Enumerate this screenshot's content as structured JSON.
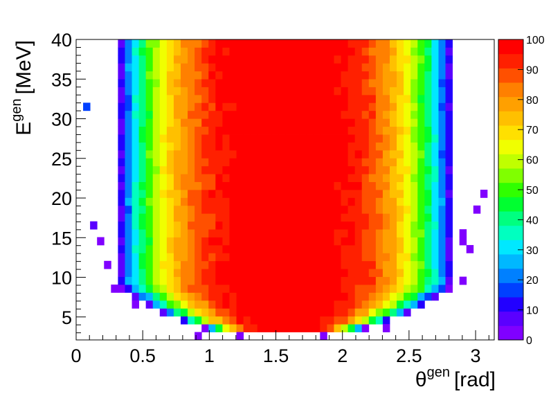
{
  "chart_data": {
    "type": "heatmap",
    "title": "",
    "xlabel": "θ",
    "xlabel_sup": "gen",
    "xlabel_unit": "[rad]",
    "ylabel": "E",
    "ylabel_sup": "gen",
    "ylabel_unit": "[MeV]",
    "xlim": [
      0,
      3.14
    ],
    "ylim": [
      2.1,
      40
    ],
    "x_ticks": [
      "0",
      "0.5",
      "1",
      "1.5",
      "2",
      "2.5",
      "3"
    ],
    "y_ticks": [
      "5",
      "10",
      "15",
      "20",
      "25",
      "30",
      "35",
      "40"
    ],
    "z_range": [
      0,
      100
    ],
    "colorbar_ticks": [
      "0",
      "10",
      "20",
      "30",
      "40",
      "50",
      "60",
      "70",
      "80",
      "90",
      "100"
    ],
    "x_bins": 60,
    "y_bins": 38,
    "description_of_values": "Efficiency per bin (0-100); ~100 near theta=1.57, falling to ~0 near theta=0.3 and theta=2.85; low-energy edge near E=3 MeV",
    "sparse_low_points": [
      [
        0.09,
        31.5,
        15
      ],
      [
        0.15,
        17,
        5
      ],
      [
        0.2,
        14.5,
        3
      ],
      [
        0.21,
        11.5,
        3
      ],
      [
        0.27,
        8.5,
        3
      ],
      [
        0.47,
        6.5,
        3
      ],
      [
        0.91,
        2.5,
        3
      ],
      [
        1.22,
        2.5,
        3
      ],
      [
        1.85,
        2.5,
        3
      ],
      [
        2.35,
        3.5,
        3
      ],
      [
        2.91,
        16,
        3
      ],
      [
        2.93,
        14.5,
        3
      ],
      [
        2.9,
        9.5,
        3
      ],
      [
        2.99,
        19,
        3
      ],
      [
        3.07,
        20.5,
        3
      ],
      [
        2.95,
        13.5,
        3
      ]
    ]
  }
}
